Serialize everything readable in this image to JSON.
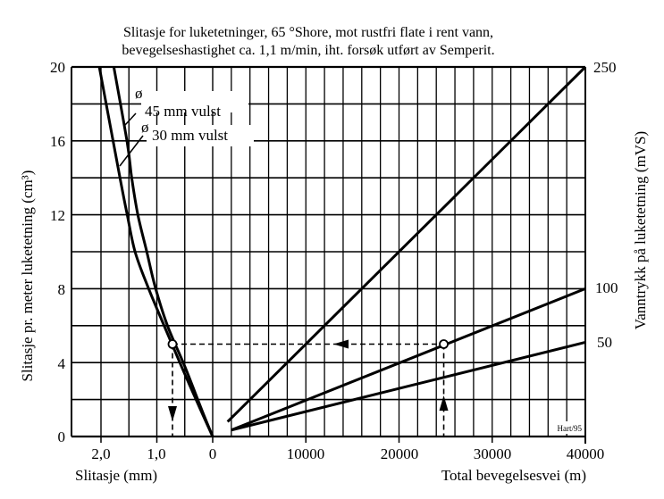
{
  "title": {
    "line1": "Slitasje for luketetninger, 65 °Shore, mot rustfri flate i rent vann,",
    "line2": "bevegelseshastighet ca. 1,1 m/min, iht. forsøk utført av Semperit."
  },
  "axes": {
    "y_left_label": "Slitasje pr. meter luketetning (cm³)",
    "y_right_label": "Vanntrykk på luketetning (mVS)",
    "x_left_label": "Slitasje (mm)",
    "x_right_label": "Total bevegelsesvei (m)",
    "y_left_ticks": [
      "0",
      "4",
      "8",
      "12",
      "16",
      "20"
    ],
    "x_left_ticks": [
      "2,0",
      "1,0",
      "0"
    ],
    "x_right_ticks": [
      "10000",
      "20000",
      "30000",
      "40000"
    ],
    "y_right_ticks": [
      "250",
      "100",
      "50"
    ]
  },
  "legend": {
    "curve_45": "45 mm vulst",
    "curve_30": "30 mm vulst",
    "diameter_symbol": "ø"
  },
  "credit": "Hart/95",
  "chart_data": [
    {
      "type": "line",
      "panel": "left",
      "title": "Slitasje vs. slitasje pr. meter luketetning",
      "xlabel": "Slitasje (mm)",
      "ylabel": "Slitasje pr. meter luketetning (cm³)",
      "xlim": [
        2.5,
        0
      ],
      "ylim": [
        0,
        20
      ],
      "x_ticks": [
        2.0,
        1.0,
        0
      ],
      "y_ticks": [
        0,
        4,
        8,
        12,
        16,
        20
      ],
      "grid": true,
      "series": [
        {
          "name": "ø30 mm vulst",
          "x": [
            2.03,
            1.66,
            1.53,
            1.39,
            1.16,
            0.87,
            0.56,
            0.21,
            0
          ],
          "y": [
            20,
            14,
            12,
            10,
            8.1,
            6.0,
            3.8,
            1.4,
            0
          ]
        },
        {
          "name": "ø45 mm vulst",
          "x": [
            1.77,
            1.53,
            1.45,
            1.34,
            1.18,
            1.03,
            0.81,
            0.5,
            0.19,
            0
          ],
          "y": [
            20,
            15.9,
            14,
            12,
            10,
            8.1,
            6.0,
            3.8,
            1.4,
            0
          ]
        }
      ],
      "annotations": [
        {
          "type": "point",
          "x": 0.72,
          "y": 5.0,
          "series": "ø45 mm vulst"
        },
        {
          "type": "dashed-arrow-down",
          "from": [
            0.72,
            5.0
          ],
          "to": [
            0.72,
            0
          ]
        }
      ]
    },
    {
      "type": "line",
      "panel": "right",
      "title": "Total bevegelsesvei vs. slitasje, per vanntrykk",
      "xlabel": "Total bevegelsesvei (m)",
      "ylabel": "Slitasje pr. meter luketetning (cm³)",
      "y2label": "Vanntrykk på luketetning (mVS)",
      "xlim": [
        0,
        40000
      ],
      "ylim": [
        0,
        20
      ],
      "x_ticks": [
        10000,
        20000,
        30000,
        40000
      ],
      "grid": true,
      "series": [
        {
          "name": "250 mVS",
          "x": [
            1600,
            40000
          ],
          "y": [
            0.8,
            20.0
          ]
        },
        {
          "name": "100 mVS",
          "x": [
            2000,
            40000
          ],
          "y": [
            0.35,
            8.0
          ]
        },
        {
          "name": "50 mVS",
          "x": [
            2000,
            40000
          ],
          "y": [
            0.35,
            5.1
          ]
        }
      ],
      "annotations": [
        {
          "type": "point",
          "x": 24800,
          "y": 5.0,
          "series": "100 mVS"
        },
        {
          "type": "dashed-arrow-up",
          "from": [
            24800,
            0
          ],
          "to": [
            24800,
            5.0
          ]
        },
        {
          "type": "dashed-arrow-left",
          "from": [
            24800,
            5.0
          ],
          "to": [
            0.72,
            5.0
          ],
          "note": "continues to left panel"
        }
      ]
    }
  ]
}
